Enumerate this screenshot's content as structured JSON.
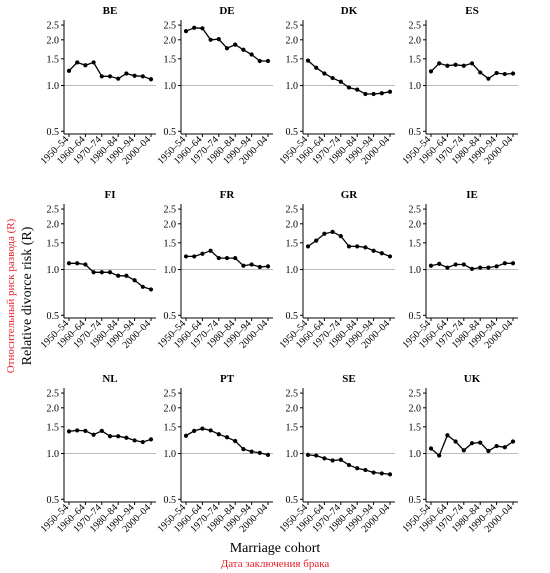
{
  "figure": {
    "ylabel": "Relative divorce risk  (R)",
    "ylabel_ru": "Относительный риск развода (R)",
    "xlabel": "Marriage cohort",
    "xlabel_ru": "Дата заключения брака",
    "accent_color_ru": "#e8202a",
    "ref_line_color": "#bbbbbb"
  },
  "chart_data": {
    "type": "line",
    "scale": "log",
    "ylim": [
      0.48,
      2.7
    ],
    "yticks": [
      "0.5",
      "1.0",
      "1.5",
      "2.0",
      "2.5"
    ],
    "reference_line": 1.0,
    "x_tick_labels": [
      "1950–54",
      "1960–64",
      "1970–74",
      "1980–84",
      "1990–94",
      "2000–04"
    ],
    "panels": [
      {
        "title": "BE",
        "values": [
          1.25,
          1.42,
          1.36,
          1.42,
          1.15,
          1.15,
          1.11,
          1.2,
          1.16,
          1.15,
          1.1
        ]
      },
      {
        "title": "DE",
        "values": [
          2.28,
          2.4,
          2.38,
          2.0,
          2.02,
          1.76,
          1.86,
          1.72,
          1.6,
          1.45,
          1.45
        ]
      },
      {
        "title": "DK",
        "values": [
          1.46,
          1.31,
          1.2,
          1.12,
          1.06,
          0.97,
          0.94,
          0.88,
          0.88,
          0.89,
          0.91
        ]
      },
      {
        "title": "ES",
        "values": [
          1.24,
          1.4,
          1.35,
          1.37,
          1.35,
          1.4,
          1.22,
          1.11,
          1.21,
          1.19,
          1.2
        ]
      },
      {
        "title": "FI",
        "values": [
          1.1,
          1.1,
          1.08,
          0.96,
          0.96,
          0.96,
          0.91,
          0.91,
          0.85,
          0.77,
          0.74
        ]
      },
      {
        "title": "FR",
        "values": [
          1.22,
          1.22,
          1.27,
          1.33,
          1.19,
          1.19,
          1.19,
          1.06,
          1.08,
          1.04,
          1.05
        ]
      },
      {
        "title": "GR",
        "values": [
          1.42,
          1.55,
          1.72,
          1.77,
          1.66,
          1.42,
          1.42,
          1.4,
          1.33,
          1.28,
          1.22
        ]
      },
      {
        "title": "IE",
        "values": [
          1.06,
          1.09,
          1.03,
          1.08,
          1.08,
          1.01,
          1.03,
          1.03,
          1.05,
          1.1,
          1.1
        ]
      },
      {
        "title": "NL",
        "values": [
          1.4,
          1.42,
          1.41,
          1.33,
          1.41,
          1.3,
          1.3,
          1.27,
          1.22,
          1.19,
          1.24
        ]
      },
      {
        "title": "PT",
        "values": [
          1.31,
          1.41,
          1.46,
          1.42,
          1.34,
          1.28,
          1.21,
          1.07,
          1.03,
          1.01,
          0.98
        ]
      },
      {
        "title": "SE",
        "values": [
          0.98,
          0.97,
          0.93,
          0.9,
          0.91,
          0.84,
          0.8,
          0.78,
          0.75,
          0.74,
          0.73
        ]
      },
      {
        "title": "UK",
        "values": [
          1.08,
          0.97,
          1.32,
          1.2,
          1.05,
          1.17,
          1.18,
          1.04,
          1.12,
          1.1,
          1.2
        ]
      }
    ]
  }
}
